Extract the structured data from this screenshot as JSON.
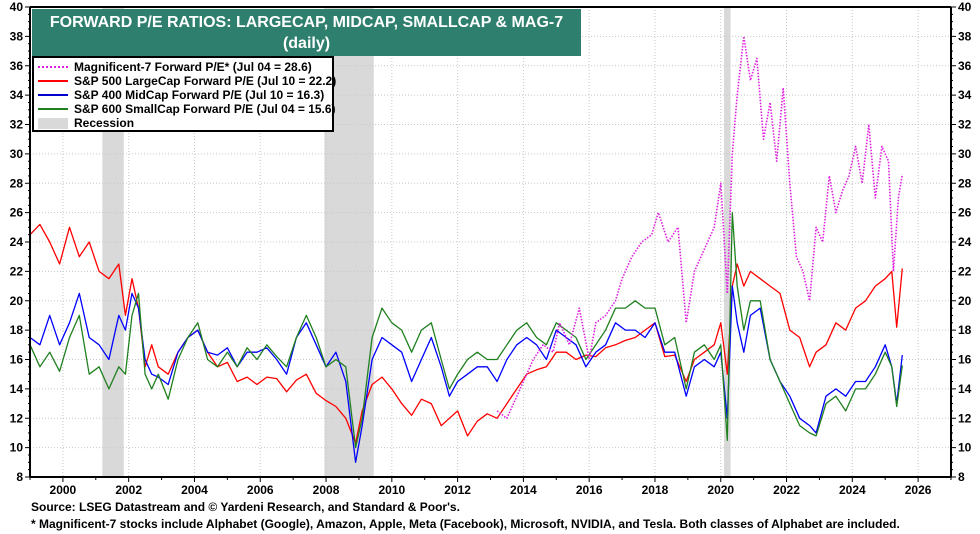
{
  "chart_data": {
    "type": "line",
    "title": "FORWARD P/E RATIOS: LARGECAP, MIDCAP, SMALLCAP & MAG-7",
    "subtitle": "(daily)",
    "xlabel": "",
    "ylabel": "",
    "xlim": [
      1999.0,
      2027.0
    ],
    "ylim": [
      8,
      40
    ],
    "x_ticks": [
      "2000",
      "2002",
      "2004",
      "2006",
      "2008",
      "2010",
      "2012",
      "2014",
      "2016",
      "2018",
      "2020",
      "2022",
      "2024",
      "2026"
    ],
    "y_ticks": [
      8,
      10,
      12,
      14,
      16,
      18,
      20,
      22,
      24,
      26,
      28,
      30,
      32,
      34,
      36,
      38,
      40
    ],
    "grid": true,
    "legend_position": "top-left",
    "recessions": [
      [
        2001.2,
        2001.85
      ],
      [
        2007.95,
        2009.45
      ],
      [
        2020.1,
        2020.3
      ]
    ],
    "series": [
      {
        "name": "Magnificent-7 Forward P/E* (Jul 04 = 28.6)",
        "color": "#e020e0",
        "style": "dotted",
        "x": [
          2013.2,
          2013.5,
          2013.8,
          2014.0,
          2014.3,
          2014.6,
          2014.9,
          2015.1,
          2015.4,
          2015.7,
          2016.0,
          2016.2,
          2016.5,
          2016.8,
          2017.0,
          2017.3,
          2017.6,
          2017.9,
          2018.1,
          2018.4,
          2018.7,
          2018.95,
          2019.2,
          2019.5,
          2019.8,
          2020.0,
          2020.2,
          2020.35,
          2020.5,
          2020.7,
          2020.9,
          2021.1,
          2021.3,
          2021.5,
          2021.7,
          2021.9,
          2022.1,
          2022.3,
          2022.5,
          2022.7,
          2022.9,
          2023.1,
          2023.3,
          2023.5,
          2023.7,
          2023.9,
          2024.1,
          2024.3,
          2024.5,
          2024.7,
          2024.9,
          2025.1,
          2025.25,
          2025.4,
          2025.52
        ],
        "values": [
          12.5,
          12.0,
          13.5,
          14.5,
          16.0,
          17.0,
          16.5,
          18.5,
          17.0,
          19.5,
          16.0,
          18.5,
          19.0,
          20.0,
          21.5,
          23.0,
          24.0,
          24.5,
          26.0,
          24.0,
          25.0,
          18.5,
          22.0,
          23.5,
          25.0,
          28.0,
          20.5,
          30.0,
          34.0,
          38.0,
          35.0,
          36.5,
          31.0,
          33.5,
          29.5,
          34.5,
          28.0,
          23.0,
          22.0,
          20.0,
          25.0,
          24.0,
          28.5,
          26.0,
          27.5,
          28.5,
          30.5,
          28.0,
          32.0,
          27.0,
          30.5,
          29.5,
          22.0,
          27.0,
          28.6
        ]
      },
      {
        "name": "S&P 500 LargeCap Forward P/E (Jul 10 = 22.2)",
        "color": "#ff0000",
        "style": "solid",
        "x": [
          1999.0,
          1999.3,
          1999.6,
          1999.9,
          2000.2,
          2000.5,
          2000.8,
          2001.1,
          2001.4,
          2001.7,
          2001.9,
          2002.1,
          2002.3,
          2002.5,
          2002.7,
          2002.9,
          2003.2,
          2003.5,
          2003.8,
          2004.1,
          2004.4,
          2004.7,
          2005.0,
          2005.3,
          2005.6,
          2005.9,
          2006.2,
          2006.5,
          2006.8,
          2007.1,
          2007.4,
          2007.7,
          2008.0,
          2008.3,
          2008.6,
          2008.9,
          2009.1,
          2009.4,
          2009.7,
          2010.0,
          2010.3,
          2010.6,
          2010.9,
          2011.2,
          2011.5,
          2011.75,
          2012.0,
          2012.3,
          2012.6,
          2012.9,
          2013.2,
          2013.5,
          2013.8,
          2014.1,
          2014.4,
          2014.7,
          2015.0,
          2015.3,
          2015.6,
          2015.9,
          2016.2,
          2016.5,
          2016.8,
          2017.1,
          2017.4,
          2017.7,
          2018.0,
          2018.3,
          2018.6,
          2018.95,
          2019.2,
          2019.5,
          2019.8,
          2020.0,
          2020.2,
          2020.35,
          2020.5,
          2020.7,
          2020.9,
          2021.2,
          2021.5,
          2021.8,
          2022.1,
          2022.4,
          2022.7,
          2022.9,
          2023.2,
          2023.5,
          2023.8,
          2024.1,
          2024.4,
          2024.7,
          2025.0,
          2025.2,
          2025.35,
          2025.52
        ],
        "values": [
          24.5,
          25.2,
          24.0,
          22.5,
          25.0,
          23.0,
          24.0,
          22.0,
          21.5,
          22.5,
          19.0,
          21.5,
          19.5,
          15.5,
          17.0,
          15.5,
          15.0,
          16.5,
          17.5,
          18.0,
          16.5,
          15.5,
          15.8,
          14.5,
          14.8,
          14.3,
          14.8,
          14.7,
          13.8,
          14.6,
          15.0,
          13.7,
          13.2,
          12.8,
          12.0,
          10.3,
          12.5,
          14.3,
          14.8,
          14.0,
          13.0,
          12.2,
          13.3,
          13.0,
          11.5,
          12.0,
          12.5,
          10.8,
          11.8,
          12.3,
          12.0,
          13.0,
          14.0,
          15.0,
          15.3,
          15.5,
          16.5,
          16.5,
          16.0,
          16.3,
          16.2,
          16.8,
          17.0,
          17.3,
          17.5,
          18.0,
          18.5,
          16.2,
          16.3,
          14.5,
          16.0,
          16.5,
          17.0,
          18.5,
          15.0,
          21.0,
          22.5,
          21.0,
          22.0,
          21.5,
          21.0,
          20.5,
          18.0,
          17.5,
          15.5,
          16.5,
          17.0,
          18.5,
          18.0,
          19.5,
          20.0,
          21.0,
          21.5,
          22.0,
          18.2,
          22.2
        ]
      },
      {
        "name": "S&P 400 MidCap Forward P/E (Jul 10 = 16.3)",
        "color": "#0000ff",
        "style": "solid",
        "x": [
          1999.0,
          1999.3,
          1999.6,
          1999.9,
          2000.2,
          2000.5,
          2000.8,
          2001.1,
          2001.4,
          2001.7,
          2001.9,
          2002.1,
          2002.3,
          2002.5,
          2002.7,
          2002.9,
          2003.2,
          2003.5,
          2003.8,
          2004.1,
          2004.4,
          2004.7,
          2005.0,
          2005.3,
          2005.6,
          2005.9,
          2006.2,
          2006.5,
          2006.8,
          2007.1,
          2007.4,
          2007.7,
          2008.0,
          2008.3,
          2008.6,
          2008.9,
          2009.1,
          2009.4,
          2009.7,
          2010.0,
          2010.3,
          2010.6,
          2010.9,
          2011.2,
          2011.5,
          2011.75,
          2012.0,
          2012.3,
          2012.6,
          2012.9,
          2013.2,
          2013.5,
          2013.8,
          2014.1,
          2014.4,
          2014.7,
          2015.0,
          2015.3,
          2015.6,
          2015.9,
          2016.2,
          2016.5,
          2016.8,
          2017.1,
          2017.4,
          2017.7,
          2018.0,
          2018.3,
          2018.6,
          2018.95,
          2019.2,
          2019.5,
          2019.8,
          2020.0,
          2020.2,
          2020.35,
          2020.5,
          2020.7,
          2020.9,
          2021.2,
          2021.5,
          2021.8,
          2022.1,
          2022.4,
          2022.7,
          2022.9,
          2023.2,
          2023.5,
          2023.8,
          2024.1,
          2024.4,
          2024.7,
          2025.0,
          2025.2,
          2025.35,
          2025.52
        ],
        "values": [
          17.5,
          17.0,
          19.0,
          17.0,
          18.5,
          20.5,
          17.5,
          17.0,
          16.0,
          19.0,
          18.0,
          20.5,
          19.5,
          16.0,
          15.0,
          14.8,
          14.3,
          16.5,
          17.5,
          18.0,
          16.5,
          16.3,
          16.8,
          15.5,
          16.5,
          16.5,
          16.8,
          16.0,
          15.0,
          17.5,
          18.5,
          17.0,
          15.5,
          16.5,
          14.5,
          9.0,
          11.5,
          16.0,
          17.5,
          17.0,
          16.5,
          14.5,
          16.0,
          17.5,
          15.5,
          13.5,
          14.5,
          15.0,
          15.5,
          15.5,
          14.5,
          16.0,
          17.0,
          17.5,
          17.0,
          16.0,
          18.0,
          17.5,
          17.0,
          15.5,
          16.5,
          17.0,
          18.5,
          18.0,
          18.0,
          17.5,
          18.5,
          16.5,
          16.5,
          13.5,
          15.5,
          16.0,
          15.5,
          16.5,
          12.0,
          21.0,
          18.5,
          16.5,
          19.0,
          19.5,
          16.0,
          14.5,
          13.5,
          12.0,
          11.5,
          11.0,
          13.5,
          14.0,
          13.5,
          14.5,
          14.5,
          15.5,
          17.0,
          15.5,
          13.0,
          16.3
        ]
      },
      {
        "name": "S&P 600 SmallCap Forward P/E (Jul 04 = 15.6)",
        "color": "#208020",
        "style": "solid",
        "x": [
          1999.0,
          1999.3,
          1999.6,
          1999.9,
          2000.2,
          2000.5,
          2000.8,
          2001.1,
          2001.4,
          2001.7,
          2001.9,
          2002.1,
          2002.3,
          2002.5,
          2002.7,
          2002.9,
          2003.2,
          2003.5,
          2003.8,
          2004.1,
          2004.4,
          2004.7,
          2005.0,
          2005.3,
          2005.6,
          2005.9,
          2006.2,
          2006.5,
          2006.8,
          2007.1,
          2007.4,
          2007.7,
          2008.0,
          2008.3,
          2008.6,
          2008.9,
          2009.1,
          2009.4,
          2009.7,
          2010.0,
          2010.3,
          2010.6,
          2010.9,
          2011.2,
          2011.5,
          2011.75,
          2012.0,
          2012.3,
          2012.6,
          2012.9,
          2013.2,
          2013.5,
          2013.8,
          2014.1,
          2014.4,
          2014.7,
          2015.0,
          2015.3,
          2015.6,
          2015.9,
          2016.2,
          2016.5,
          2016.8,
          2017.1,
          2017.4,
          2017.7,
          2018.0,
          2018.3,
          2018.6,
          2018.95,
          2019.2,
          2019.5,
          2019.8,
          2020.0,
          2020.2,
          2020.35,
          2020.5,
          2020.7,
          2020.9,
          2021.2,
          2021.5,
          2021.8,
          2022.1,
          2022.4,
          2022.7,
          2022.9,
          2023.2,
          2023.5,
          2023.8,
          2024.1,
          2024.4,
          2024.7,
          2025.0,
          2025.2,
          2025.35,
          2025.52
        ],
        "values": [
          17.0,
          15.5,
          16.5,
          15.2,
          17.5,
          19.0,
          15.0,
          15.5,
          14.0,
          15.5,
          15.0,
          19.0,
          20.5,
          15.0,
          14.0,
          15.0,
          13.3,
          16.0,
          17.5,
          18.5,
          16.0,
          15.5,
          16.5,
          15.5,
          16.8,
          16.0,
          17.0,
          16.2,
          15.5,
          17.5,
          19.0,
          17.5,
          15.5,
          16.0,
          15.5,
          10.0,
          12.0,
          17.5,
          19.5,
          18.5,
          18.0,
          16.5,
          18.0,
          18.5,
          16.0,
          14.0,
          15.0,
          16.0,
          16.5,
          16.0,
          16.0,
          17.0,
          18.0,
          18.5,
          17.5,
          17.0,
          18.5,
          18.0,
          17.5,
          16.0,
          17.0,
          18.0,
          19.5,
          19.5,
          20.0,
          19.5,
          19.5,
          17.0,
          17.5,
          14.0,
          16.5,
          17.0,
          16.0,
          17.0,
          10.5,
          26.0,
          21.0,
          18.0,
          20.0,
          20.0,
          16.0,
          14.5,
          13.0,
          11.5,
          11.0,
          10.8,
          13.0,
          13.5,
          12.5,
          14.0,
          14.0,
          15.0,
          16.5,
          15.5,
          12.8,
          15.6
        ]
      }
    ]
  },
  "footer": {
    "source": "Source: LSEG Datastream and © Yardeni Research, and Standard & Poor's.",
    "note": "* Magnificent-7 stocks include Alphabet (Google), Amazon, Apple, Meta (Facebook), Microsoft, NVIDIA, and Tesla. Both classes of Alphabet are included."
  },
  "legend": {
    "recession_label": "Recession",
    "recession_color": "#d9d9d9"
  },
  "colors": {
    "title_bg": "#2f7f6f"
  }
}
